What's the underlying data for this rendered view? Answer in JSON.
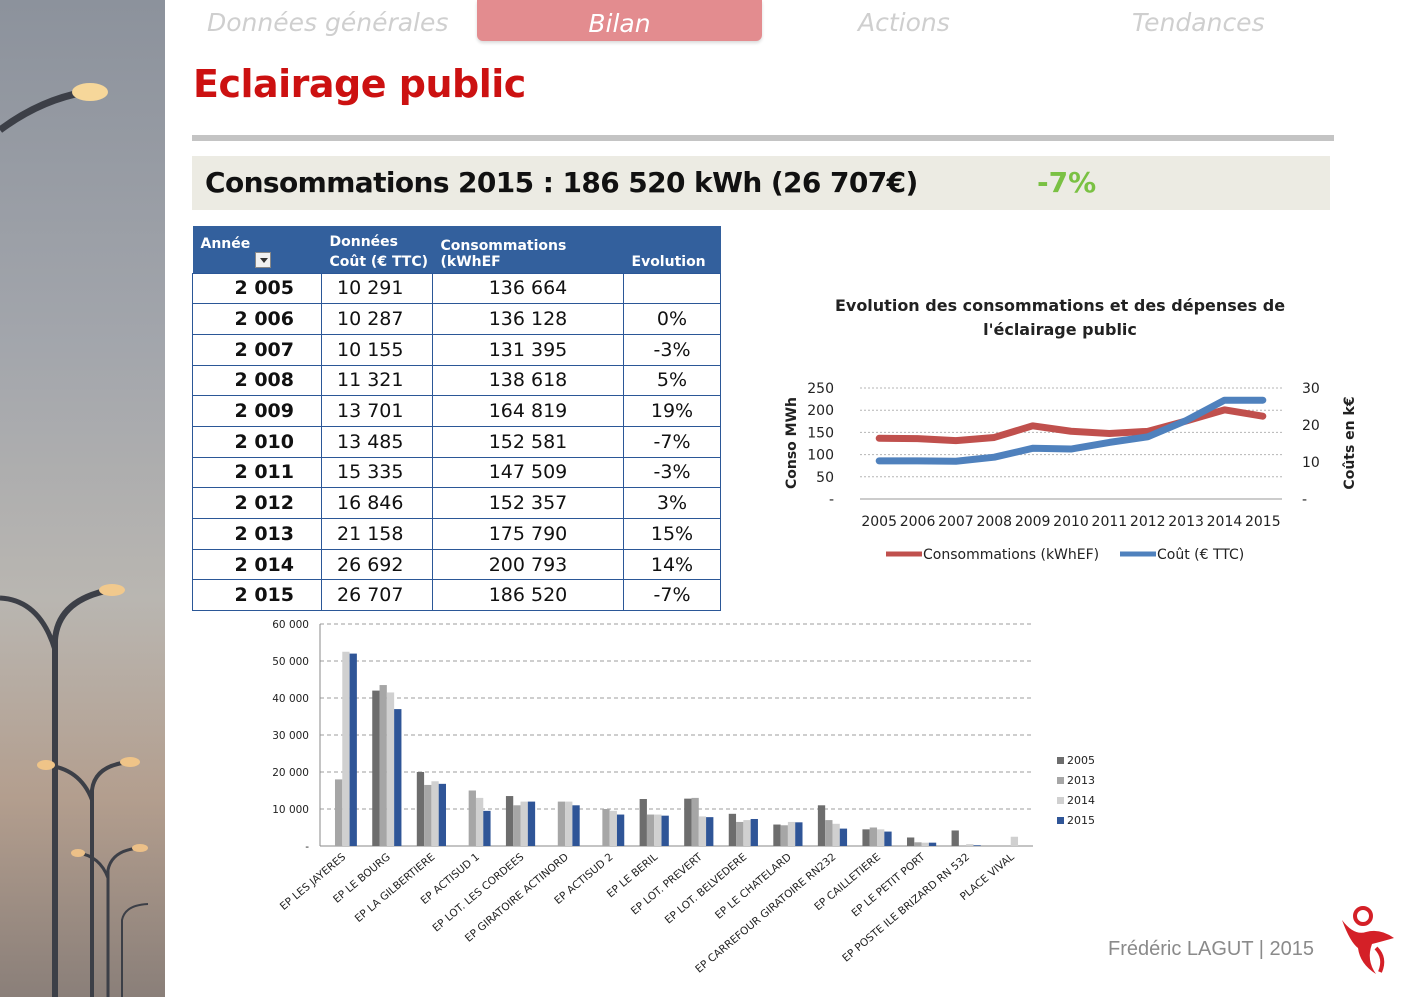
{
  "nav": {
    "tabs": [
      {
        "label": "Données générales",
        "active": false
      },
      {
        "label": "Bilan",
        "active": true
      },
      {
        "label": "Actions",
        "active": false
      },
      {
        "label": "Tendances",
        "active": false
      }
    ]
  },
  "page": {
    "title": "Eclairage public",
    "summary": "Consommations 2015 : 186 520 kWh (26 707€)",
    "summary_delta": "-7%"
  },
  "table": {
    "group_header": "Données",
    "headers": [
      "Année",
      "Coût (€ TTC)",
      "Consommations (kWhEF",
      "Evolution"
    ],
    "rows": [
      {
        "annee": "2 005",
        "cout": "10 291",
        "conso": "136 664",
        "evol": ""
      },
      {
        "annee": "2 006",
        "cout": "10 287",
        "conso": "136 128",
        "evol": "0%"
      },
      {
        "annee": "2 007",
        "cout": "10 155",
        "conso": "131 395",
        "evol": "-3%"
      },
      {
        "annee": "2 008",
        "cout": "11 321",
        "conso": "138 618",
        "evol": "5%"
      },
      {
        "annee": "2 009",
        "cout": "13 701",
        "conso": "164 819",
        "evol": "19%"
      },
      {
        "annee": "2 010",
        "cout": "13 485",
        "conso": "152 581",
        "evol": "-7%"
      },
      {
        "annee": "2 011",
        "cout": "15 335",
        "conso": "147 509",
        "evol": "-3%"
      },
      {
        "annee": "2 012",
        "cout": "16 846",
        "conso": "152 357",
        "evol": "3%"
      },
      {
        "annee": "2 013",
        "cout": "21 158",
        "conso": "175 790",
        "evol": "15%"
      },
      {
        "annee": "2 014",
        "cout": "26 692",
        "conso": "200 793",
        "evol": "14%"
      },
      {
        "annee": "2 015",
        "cout": "26 707",
        "conso": "186 520",
        "evol": "-7%"
      }
    ]
  },
  "chart_data": [
    {
      "type": "line",
      "title": "Evolution des consommations  et des dépenses de l'éclairage public",
      "title_lines": [
        "Evolution des consommations  et des dépenses de",
        "l'éclairage public"
      ],
      "x": [
        "2005",
        "2006",
        "2007",
        "2008",
        "2009",
        "2010",
        "2011",
        "2012",
        "2013",
        "2014",
        "2015"
      ],
      "ylabel": "Conso MWh",
      "y2label": "Coûts en k€",
      "ylim": [
        0,
        250
      ],
      "y2lim": [
        0,
        30
      ],
      "yticks": [
        "-",
        "50",
        "100",
        "150",
        "200",
        "250"
      ],
      "y2ticks": [
        "-",
        "10",
        "20",
        "30"
      ],
      "grid": true,
      "legend_position": "bottom",
      "series": [
        {
          "name": "Consommations (kWhEF)",
          "axis": "left",
          "color": "#c0504d",
          "values": [
            136.7,
            136.1,
            131.4,
            138.6,
            164.8,
            152.6,
            147.5,
            152.4,
            175.8,
            200.8,
            186.5
          ]
        },
        {
          "name": "Coût (€ TTC)",
          "axis": "right",
          "color": "#4f81bd",
          "values": [
            10.3,
            10.3,
            10.2,
            11.3,
            13.7,
            13.5,
            15.3,
            16.8,
            21.2,
            26.7,
            26.7
          ]
        }
      ]
    },
    {
      "type": "bar",
      "categories": [
        "EP LES JAYERES",
        "EP LE BOURG",
        "EP LA GILBERTIERE",
        "EP ACTISUD 1",
        "EP LOT. LES CORDEES",
        "EP GIRATOIRE ACTINORD",
        "EP ACTISUD 2",
        "EP LE BERIL",
        "EP LOT. PREVERT",
        "EP LOT. BELVEDERE",
        "EP LE CHATELARD",
        "EP CARREFOUR GIRATOIRE RN232",
        "EP CAILLETIERE",
        "EP LE PETIT PORT",
        "EP POSTE ILE BRIZARD RN 532",
        "PLACE VIVAL"
      ],
      "ylim": [
        0,
        60000
      ],
      "yticks": [
        "-",
        "10 000",
        "20 000",
        "30 000",
        "40 000",
        "50 000",
        "60 000"
      ],
      "grid": true,
      "legend_position": "right",
      "series": [
        {
          "name": "2005",
          "color": "#6d6d6d",
          "values": [
            0,
            42000,
            20000,
            0,
            13500,
            0,
            0,
            12700,
            12800,
            8700,
            5800,
            11000,
            4500,
            2300,
            4200,
            0
          ]
        },
        {
          "name": "2013",
          "color": "#a6a6a6",
          "values": [
            18000,
            43500,
            16500,
            15000,
            11000,
            12000,
            10000,
            8500,
            13000,
            6500,
            5600,
            7000,
            5000,
            1000,
            0,
            0
          ]
        },
        {
          "name": "2014",
          "color": "#d0d0d0",
          "values": [
            52500,
            41500,
            17500,
            13000,
            12000,
            12000,
            9500,
            8500,
            8000,
            7000,
            6500,
            6000,
            4500,
            900,
            500,
            2500
          ]
        },
        {
          "name": "2015",
          "color": "#2f5597",
          "values": [
            52000,
            37000,
            16800,
            9500,
            12000,
            11000,
            8500,
            8200,
            7800,
            7300,
            6400,
            4700,
            3900,
            900,
            200,
            0
          ]
        }
      ]
    }
  ],
  "footer": {
    "text": "Frédéric LAGUT |  2015"
  },
  "colors": {
    "accent_red": "#cc1111",
    "tab_active": "#e38c8f",
    "table_header": "#33609d",
    "delta_green": "#7ac143"
  }
}
